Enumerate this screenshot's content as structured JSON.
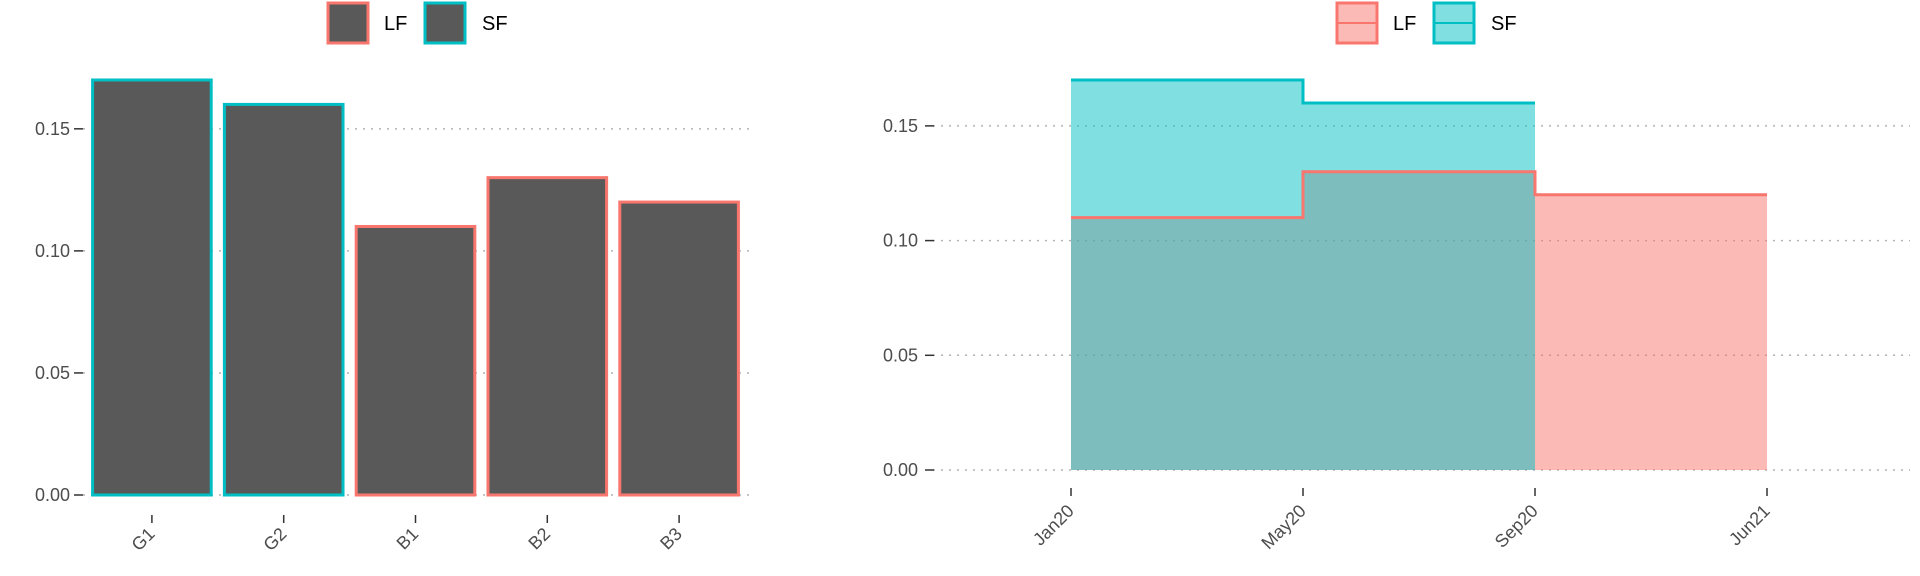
{
  "chart_data": [
    {
      "type": "bar",
      "categories": [
        "G1",
        "G2",
        "B1",
        "B2",
        "B3"
      ],
      "values": [
        0.17,
        0.16,
        0.11,
        0.13,
        0.12
      ],
      "group": [
        "SF",
        "SF",
        "LF",
        "LF",
        "LF"
      ],
      "ylim": [
        0,
        0.17
      ],
      "yticks": [
        "0.00",
        "0.05",
        "0.10",
        "0.15"
      ],
      "ytick_values": [
        0,
        0.05,
        0.1,
        0.15
      ],
      "legend": [
        {
          "label": "LF",
          "color": "#F8766D"
        },
        {
          "label": "SF",
          "color": "#00BFC4"
        }
      ],
      "legend_position": "top",
      "fill_color": "#595959",
      "grid": "horizontal dotted"
    },
    {
      "type": "area",
      "x": [
        "Jan20",
        "May20",
        "Sep20",
        "Jun21"
      ],
      "xticks": [
        "Jan20",
        "May20",
        "Sep20",
        "Jun21"
      ],
      "series": [
        {
          "name": "LF",
          "color": "#F8766D",
          "x": [
            "Jan20",
            "May20",
            "Sep20",
            "Jun21"
          ],
          "values": [
            0.11,
            0.13,
            0.12,
            0.12
          ]
        },
        {
          "name": "SF",
          "color": "#00BFC4",
          "x": [
            "Jan20",
            "May20",
            "Sep20"
          ],
          "values": [
            0.17,
            0.16,
            0.16
          ]
        }
      ],
      "step": true,
      "ylim": [
        0,
        0.17
      ],
      "yticks": [
        "0.00",
        "0.05",
        "0.10",
        "0.15"
      ],
      "ytick_values": [
        0,
        0.05,
        0.1,
        0.15
      ],
      "legend_position": "top",
      "grid": "horizontal dotted"
    }
  ]
}
